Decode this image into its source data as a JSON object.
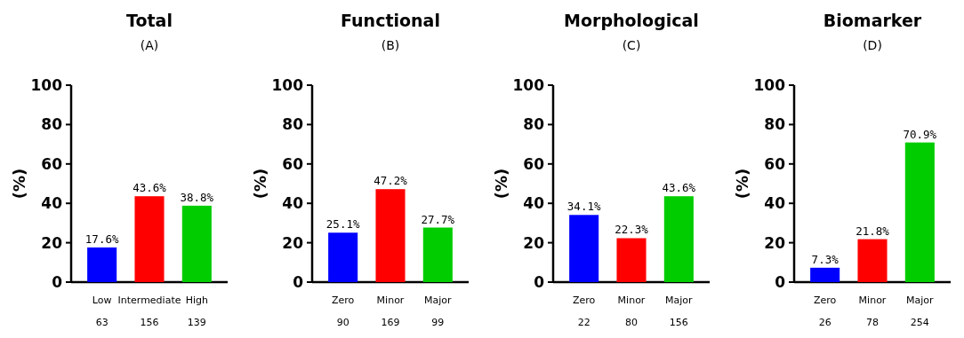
{
  "chart_data": [
    {
      "type": "bar",
      "title": "Total",
      "subtitle": "(A)",
      "ylabel": "(%)",
      "categories": [
        "Low\n63",
        "Intermediate\n156",
        "High\n139"
      ],
      "values": [
        17.6,
        43.6,
        38.8
      ],
      "colors": [
        "#0000ff",
        "#ff0000",
        "#00cc00"
      ],
      "value_labels": [
        "17.6%",
        "43.6%",
        "38.8%"
      ],
      "ylim": [
        0,
        100
      ],
      "yticks": [
        0,
        20,
        40,
        60,
        80,
        100
      ]
    },
    {
      "type": "bar",
      "title": "Functional",
      "subtitle": "(B)",
      "ylabel": "(%)",
      "categories": [
        "Zero\n90",
        "Minor\n169",
        "Major\n99"
      ],
      "values": [
        25.1,
        47.2,
        27.7
      ],
      "colors": [
        "#0000ff",
        "#ff0000",
        "#00cc00"
      ],
      "value_labels": [
        "25.1%",
        "47.2%",
        "27.7%"
      ],
      "ylim": [
        0,
        100
      ],
      "yticks": [
        0,
        20,
        40,
        60,
        80,
        100
      ]
    },
    {
      "type": "bar",
      "title": "Morphological",
      "subtitle": "(C)",
      "ylabel": "(%)",
      "categories": [
        "Zero\n22",
        "Minor\n80",
        "Major\n156"
      ],
      "values": [
        34.1,
        22.3,
        43.6
      ],
      "colors": [
        "#0000ff",
        "#ff0000",
        "#00cc00"
      ],
      "value_labels": [
        "34.1%",
        "22.3%",
        "43.6%"
      ],
      "ylim": [
        0,
        100
      ],
      "yticks": [
        0,
        20,
        40,
        60,
        80,
        100
      ]
    },
    {
      "type": "bar",
      "title": "Biomarker",
      "subtitle": "(D)",
      "ylabel": "(%)",
      "categories": [
        "Zero\n26",
        "Minor\n78",
        "Major\n254"
      ],
      "values": [
        7.3,
        21.8,
        70.9
      ],
      "colors": [
        "#0000ff",
        "#ff0000",
        "#00cc00"
      ],
      "value_labels": [
        "7.3%",
        "21.8%",
        "70.9%"
      ],
      "ylim": [
        0,
        100
      ],
      "yticks": [
        0,
        20,
        40,
        60,
        80,
        100
      ]
    }
  ]
}
